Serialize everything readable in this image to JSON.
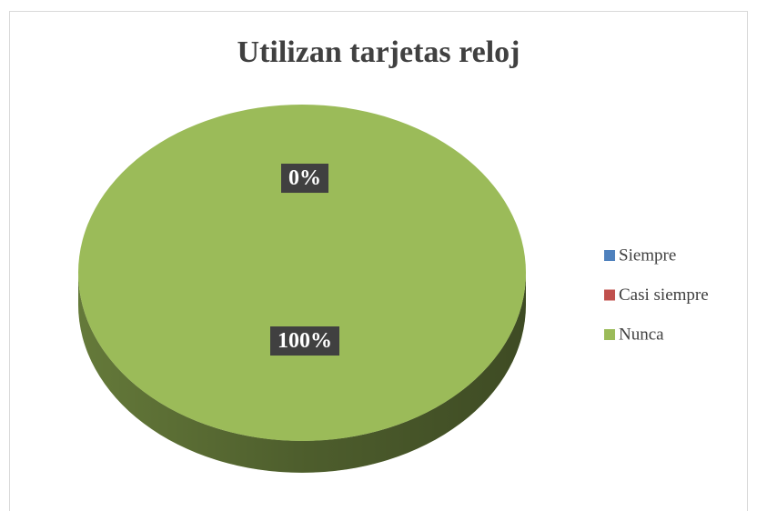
{
  "chart_data": {
    "type": "pie",
    "title": "Utilizan tarjetas reloj",
    "categories": [
      "Siempre",
      "Casi siempre",
      "Nunca"
    ],
    "values": [
      0,
      0,
      100
    ],
    "value_labels": [
      "0%",
      "0%",
      "100%"
    ],
    "colors": [
      "#4f81bd",
      "#c0504d",
      "#9bbb59"
    ],
    "legend": "right"
  }
}
